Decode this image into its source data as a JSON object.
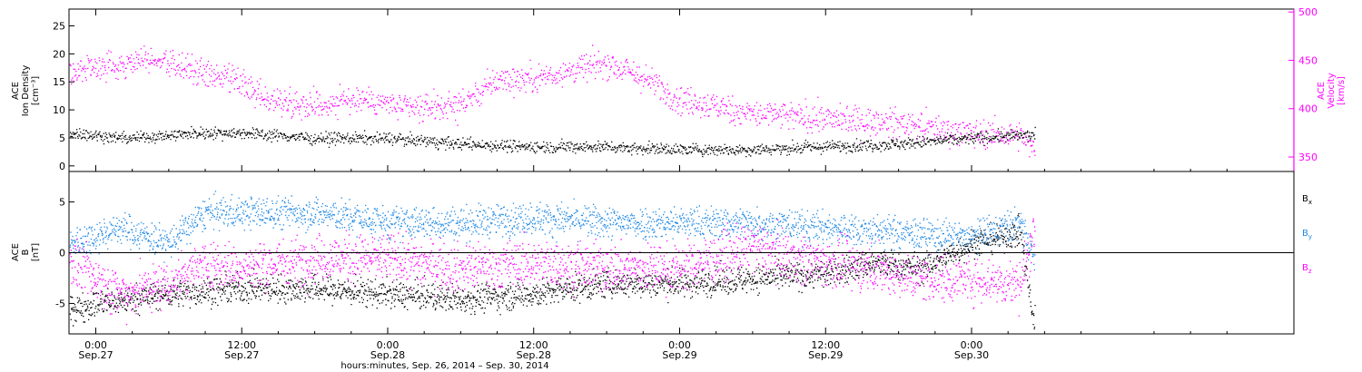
{
  "chart_data": [
    {
      "type": "scatter",
      "panel": "top",
      "title": "",
      "xlabel": "",
      "x_unit": "hours since 0:00 Sep.27, 2014",
      "xlim": [
        -2.2,
        98.5
      ],
      "data_end": 77.2,
      "left_axis": {
        "label_lines": [
          "ACE",
          "Ion Density",
          "[cm⁻³]"
        ],
        "ylim": [
          -1,
          28
        ],
        "ticks": [
          0,
          5,
          10,
          15,
          20,
          25
        ]
      },
      "right_axis": {
        "label_lines": [
          "ACE",
          "Velocity",
          "[km/s]"
        ],
        "ylim": [
          335,
          503
        ],
        "ticks": [
          350,
          400,
          450,
          500
        ]
      },
      "series": [
        {
          "name": "",
          "key": "density",
          "axis": "left",
          "color": "#000000",
          "x": [
            -2,
            2,
            6,
            9,
            12,
            18,
            24,
            30,
            36,
            42,
            48,
            54,
            60,
            66,
            72,
            76,
            77
          ],
          "y": [
            6,
            5,
            5.5,
            6,
            6,
            5,
            5,
            4,
            3.5,
            3.5,
            3,
            3,
            3.5,
            4,
            5,
            5.5,
            5.5
          ],
          "noise": 1.0
        },
        {
          "name": "",
          "key": "velocity",
          "axis": "right",
          "color": "#ff00ff",
          "x": [
            -2,
            2,
            4,
            6,
            9,
            12,
            14,
            18,
            22,
            26,
            30,
            33,
            36,
            39,
            42,
            45,
            48,
            54,
            60,
            66,
            72,
            76,
            77
          ],
          "y": [
            440,
            445,
            455,
            448,
            435,
            425,
            410,
            405,
            410,
            400,
            405,
            430,
            432,
            440,
            448,
            432,
            410,
            395,
            390,
            385,
            375,
            372,
            358
          ],
          "noise": 14
        }
      ]
    },
    {
      "type": "scatter",
      "panel": "bottom",
      "title": "",
      "xlabel": "hours:minutes, Sep. 26, 2014 – Sep. 30, 2014",
      "x_unit": "hours since 0:00 Sep.27, 2014",
      "xlim": [
        -2.2,
        98.5
      ],
      "data_end": 77.2,
      "x_ticks": [
        {
          "hour": 0,
          "time": "0:00",
          "date": "Sep.27"
        },
        {
          "hour": 12,
          "time": "12:00",
          "date": "Sep.27"
        },
        {
          "hour": 24,
          "time": "0:00",
          "date": "Sep.28"
        },
        {
          "hour": 36,
          "time": "12:00",
          "date": "Sep.28"
        },
        {
          "hour": 48,
          "time": "0:00",
          "date": "Sep.29"
        },
        {
          "hour": 60,
          "time": "12:00",
          "date": "Sep.29"
        },
        {
          "hour": 72,
          "time": "0:00",
          "date": "Sep.30"
        }
      ],
      "left_axis": {
        "label_lines": [
          "ACE",
          "B",
          "[nT]"
        ],
        "ylim": [
          -8,
          8
        ],
        "ticks": [
          -5,
          0,
          5
        ],
        "zero_line": true
      },
      "legend": {
        "placement": "right",
        "entries": [
          {
            "text": "B",
            "sub": "x",
            "color": "#000000"
          },
          {
            "text": "B",
            "sub": "y",
            "color": "#1e88e5"
          },
          {
            "text": "B",
            "sub": "z",
            "color": "#ff00ff"
          }
        ]
      },
      "series": [
        {
          "name": "Bₓ",
          "key": "bx",
          "color": "#000000",
          "x": [
            -2,
            0,
            6,
            12,
            18,
            24,
            30,
            36,
            42,
            48,
            54,
            60,
            64,
            68,
            72,
            76,
            77
          ],
          "y": [
            -5.5,
            -5,
            -4,
            -3.5,
            -3.5,
            -4,
            -4.5,
            -4,
            -3,
            -3,
            -2.5,
            -2,
            -1,
            -1.5,
            1,
            2,
            -6.5
          ],
          "noise": 1.3
        },
        {
          "name": "Bᵧ",
          "key": "by",
          "color": "#1e88e5",
          "x": [
            -2,
            2,
            6,
            9,
            12,
            18,
            24,
            30,
            36,
            42,
            48,
            54,
            60,
            66,
            72,
            76,
            77
          ],
          "y": [
            1,
            2.5,
            1,
            4,
            4,
            4,
            3,
            3,
            3.5,
            3,
            3,
            3,
            2.5,
            2,
            1.5,
            3,
            0
          ],
          "noise": 1.5
        },
        {
          "name": "Bᶻ",
          "key": "bz",
          "color": "#ff00ff",
          "x": [
            -2,
            2,
            6,
            9,
            12,
            18,
            24,
            30,
            36,
            42,
            48,
            54,
            60,
            64,
            68,
            72,
            76,
            77
          ],
          "y": [
            -1,
            -4,
            -3,
            -1,
            -1.5,
            -0.5,
            -0.5,
            -1.5,
            -1,
            -1.5,
            -1.5,
            0.5,
            -1,
            -1.5,
            -2.5,
            -2.5,
            -3,
            2
          ],
          "noise": 2.2
        }
      ]
    }
  ]
}
